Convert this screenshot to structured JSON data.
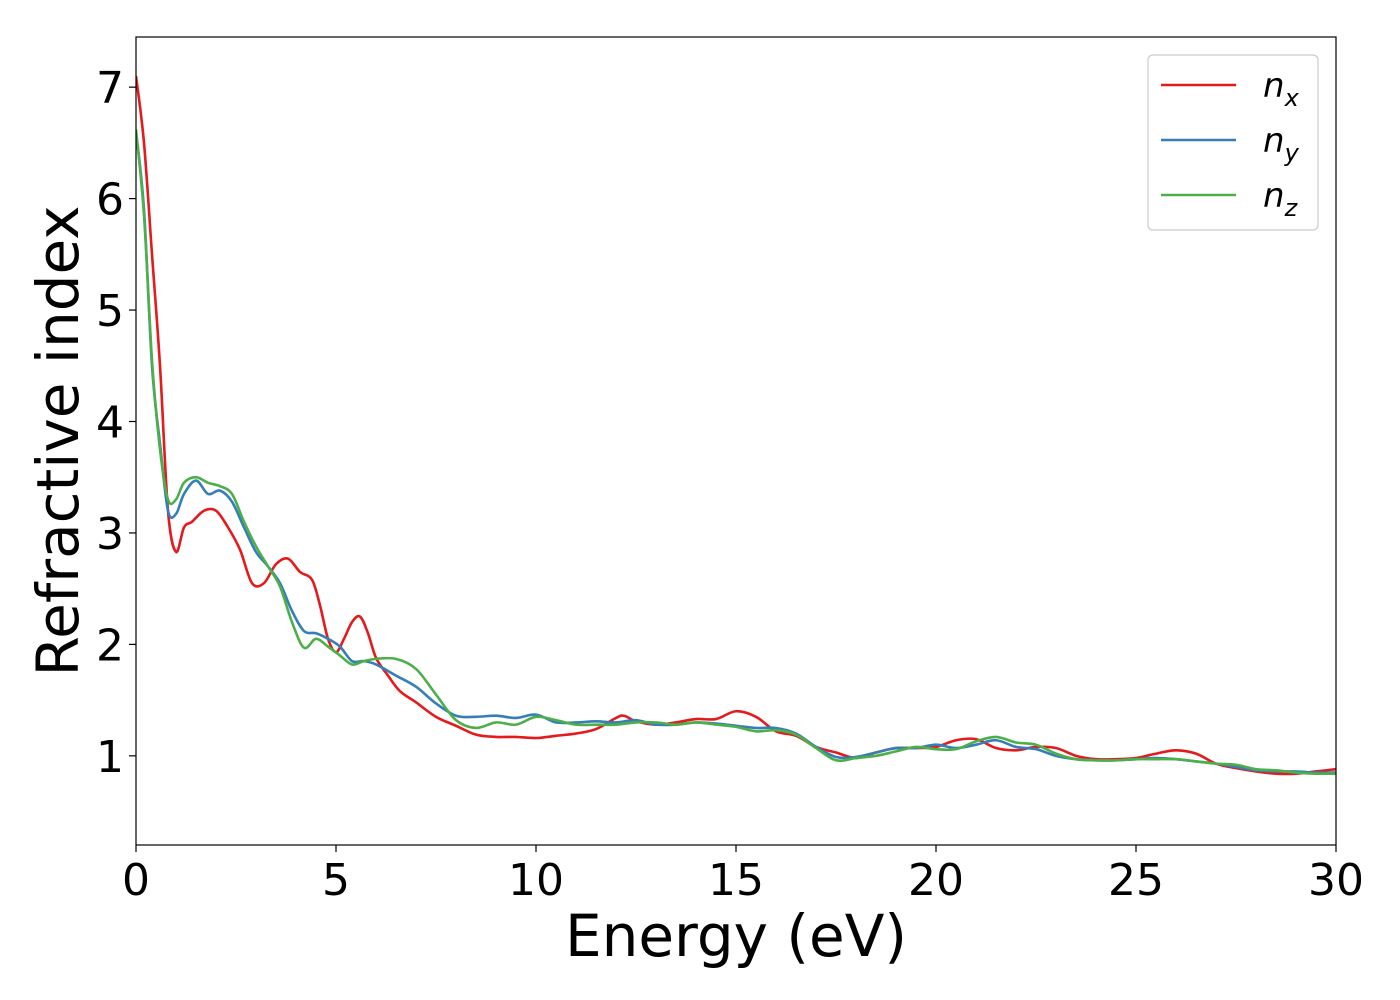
{
  "chart_data": {
    "type": "line",
    "xlabel": "Energy (eV)",
    "ylabel": "Refractive index",
    "xlim": [
      0,
      30
    ],
    "ylim": [
      0.2,
      7.45
    ],
    "xticks": [
      0,
      5,
      10,
      15,
      20,
      25,
      30
    ],
    "xtick_labels": [
      "0",
      "5",
      "10",
      "15",
      "20",
      "25",
      "30"
    ],
    "yticks": [
      1,
      2,
      3,
      4,
      5,
      6,
      7
    ],
    "ytick_labels": [
      "1",
      "2",
      "3",
      "4",
      "5",
      "6",
      "7"
    ],
    "grid": false,
    "legend_position": "top-right",
    "series": [
      {
        "name": "n",
        "subscript": "x",
        "color": "#e41a1c",
        "x": [
          0,
          0.2,
          0.4,
          0.6,
          0.8,
          1.0,
          1.2,
          1.4,
          1.7,
          2.0,
          2.3,
          2.6,
          2.9,
          3.2,
          3.5,
          3.8,
          4.1,
          4.4,
          4.6,
          4.8,
          5.0,
          5.2,
          5.4,
          5.6,
          5.8,
          6.0,
          6.3,
          6.6,
          7.0,
          7.5,
          8.0,
          8.5,
          9.0,
          9.5,
          10.0,
          10.5,
          11.0,
          11.5,
          12.0,
          12.2,
          12.5,
          13.0,
          13.5,
          14.0,
          14.5,
          15.0,
          15.5,
          16.0,
          16.5,
          17.0,
          17.5,
          18.0,
          18.5,
          19.0,
          19.5,
          20.0,
          20.5,
          21.0,
          21.5,
          22.0,
          22.5,
          23.0,
          23.5,
          24.0,
          24.5,
          25.0,
          25.5,
          26.0,
          26.5,
          27.0,
          27.5,
          28.0,
          28.5,
          29.0,
          29.5,
          30.0
        ],
        "y": [
          7.1,
          6.5,
          5.5,
          4.5,
          3.2,
          2.83,
          3.05,
          3.1,
          3.2,
          3.2,
          3.05,
          2.85,
          2.55,
          2.55,
          2.72,
          2.77,
          2.65,
          2.58,
          2.35,
          2.05,
          1.93,
          2.05,
          2.2,
          2.25,
          2.1,
          1.88,
          1.72,
          1.58,
          1.48,
          1.35,
          1.27,
          1.19,
          1.17,
          1.17,
          1.16,
          1.18,
          1.2,
          1.24,
          1.34,
          1.36,
          1.31,
          1.28,
          1.3,
          1.33,
          1.33,
          1.4,
          1.35,
          1.22,
          1.18,
          1.08,
          1.03,
          0.98,
          1.03,
          1.07,
          1.07,
          1.08,
          1.14,
          1.15,
          1.07,
          1.05,
          1.08,
          1.07,
          1.0,
          0.97,
          0.97,
          0.98,
          1.02,
          1.05,
          1.02,
          0.93,
          0.89,
          0.86,
          0.84,
          0.84,
          0.86,
          0.88
        ]
      },
      {
        "name": "n",
        "subscript": "y",
        "color": "#377eb8",
        "x": [
          0,
          0.2,
          0.4,
          0.6,
          0.8,
          1.0,
          1.2,
          1.5,
          1.8,
          2.1,
          2.4,
          2.7,
          3.0,
          3.3,
          3.6,
          3.9,
          4.2,
          4.5,
          4.8,
          5.1,
          5.4,
          5.7,
          6.0,
          6.5,
          7.0,
          7.5,
          8.0,
          8.5,
          9.0,
          9.5,
          10.0,
          10.5,
          11.0,
          11.5,
          12.0,
          12.5,
          13.0,
          13.5,
          14.0,
          14.5,
          15.0,
          15.5,
          16.0,
          16.5,
          17.0,
          17.5,
          18.0,
          18.5,
          19.0,
          19.5,
          20.0,
          20.5,
          21.0,
          21.5,
          22.0,
          22.5,
          23.0,
          23.5,
          24.0,
          24.5,
          25.0,
          25.5,
          26.0,
          26.5,
          27.0,
          27.5,
          28.0,
          28.5,
          29.0,
          29.5,
          30.0
        ],
        "y": [
          6.6,
          5.9,
          4.5,
          3.8,
          3.2,
          3.17,
          3.35,
          3.47,
          3.35,
          3.38,
          3.28,
          3.05,
          2.83,
          2.7,
          2.55,
          2.3,
          2.12,
          2.1,
          2.05,
          1.98,
          1.85,
          1.85,
          1.82,
          1.72,
          1.62,
          1.47,
          1.36,
          1.35,
          1.36,
          1.34,
          1.37,
          1.3,
          1.3,
          1.31,
          1.3,
          1.32,
          1.28,
          1.28,
          1.3,
          1.29,
          1.27,
          1.25,
          1.25,
          1.2,
          1.08,
          0.99,
          0.99,
          1.03,
          1.07,
          1.07,
          1.1,
          1.07,
          1.1,
          1.14,
          1.08,
          1.06,
          1.0,
          0.97,
          0.96,
          0.96,
          0.97,
          0.98,
          0.97,
          0.95,
          0.93,
          0.9,
          0.87,
          0.86,
          0.86,
          0.85,
          0.85
        ]
      },
      {
        "name": "n",
        "subscript": "z",
        "color": "#4daf4a",
        "x": [
          0,
          0.2,
          0.4,
          0.6,
          0.8,
          1.0,
          1.2,
          1.5,
          1.8,
          2.1,
          2.4,
          2.7,
          3.0,
          3.3,
          3.6,
          3.9,
          4.2,
          4.5,
          4.8,
          5.1,
          5.4,
          5.7,
          6.0,
          6.5,
          7.0,
          7.5,
          8.0,
          8.5,
          9.0,
          9.5,
          10.0,
          10.5,
          11.0,
          11.5,
          12.0,
          12.5,
          13.0,
          13.5,
          14.0,
          14.5,
          15.0,
          15.5,
          16.0,
          16.5,
          17.0,
          17.5,
          18.0,
          18.5,
          19.0,
          19.5,
          20.0,
          20.5,
          21.0,
          21.5,
          22.0,
          22.5,
          23.0,
          23.5,
          24.0,
          24.5,
          25.0,
          25.5,
          26.0,
          26.5,
          27.0,
          27.5,
          28.0,
          28.5,
          29.0,
          29.5,
          30.0
        ],
        "y": [
          6.62,
          5.85,
          4.55,
          3.75,
          3.3,
          3.3,
          3.45,
          3.5,
          3.45,
          3.42,
          3.35,
          3.1,
          2.88,
          2.7,
          2.52,
          2.2,
          1.97,
          2.05,
          1.98,
          1.9,
          1.82,
          1.85,
          1.87,
          1.87,
          1.78,
          1.55,
          1.32,
          1.25,
          1.3,
          1.28,
          1.35,
          1.32,
          1.28,
          1.28,
          1.28,
          1.3,
          1.3,
          1.28,
          1.3,
          1.28,
          1.26,
          1.22,
          1.23,
          1.19,
          1.07,
          0.96,
          0.98,
          1.0,
          1.04,
          1.08,
          1.06,
          1.06,
          1.13,
          1.17,
          1.12,
          1.1,
          1.02,
          0.97,
          0.96,
          0.96,
          0.97,
          0.97,
          0.97,
          0.95,
          0.93,
          0.92,
          0.88,
          0.87,
          0.85,
          0.84,
          0.84
        ]
      }
    ]
  }
}
